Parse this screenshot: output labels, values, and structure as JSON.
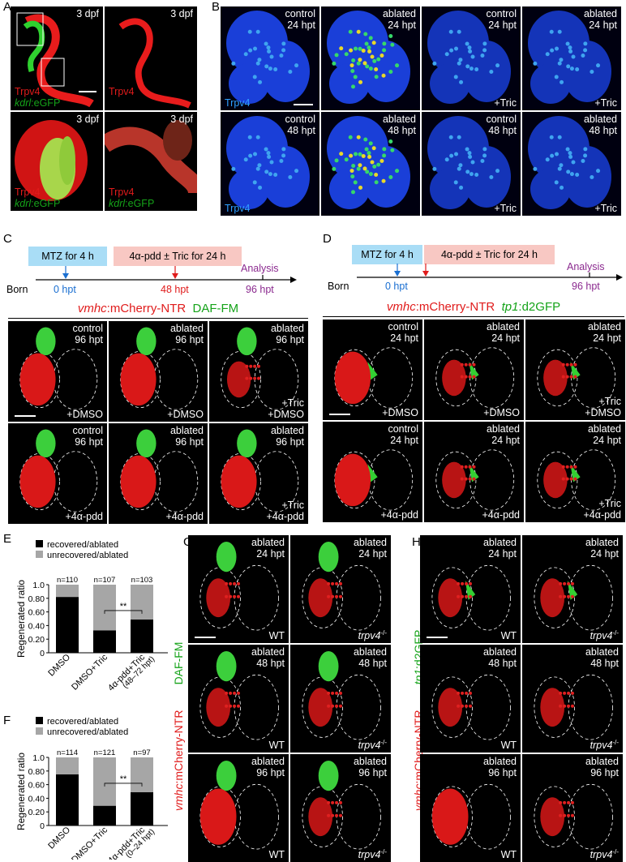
{
  "panels": {
    "A": {
      "label": "A",
      "tiles": [
        {
          "title": "3 dpf",
          "l1": "Trpv4",
          "l2": "kdrl",
          "l2b": ":eGFP"
        },
        {
          "title": "3 dpf",
          "l1": "Trpv4",
          "l2": "",
          "l2b": ""
        },
        {
          "title": "3 dpf",
          "l1": "Trpv4",
          "l2": "kdrl",
          "l2b": ":eGFP"
        },
        {
          "title": "3 dpf",
          "l1": "Trpv4",
          "l2": "kdrl",
          "l2b": ":eGFP"
        }
      ]
    },
    "B": {
      "label": "B",
      "tiles": [
        {
          "title": "control\n24 hpt",
          "br": "",
          "bl": "Trpv4"
        },
        {
          "title": "ablated\n24 hpt",
          "br": "",
          "bl": ""
        },
        {
          "title": "control\n24 hpt",
          "br": "+Tric",
          "bl": ""
        },
        {
          "title": "ablated\n24 hpt",
          "br": "+Tric",
          "bl": ""
        },
        {
          "title": "control\n48 hpt",
          "br": "",
          "bl": "Trpv4"
        },
        {
          "title": "ablated\n48 hpt",
          "br": "",
          "bl": ""
        },
        {
          "title": "control\n48 hpt",
          "br": "+Tric",
          "bl": ""
        },
        {
          "title": "ablated\n48 hpt",
          "br": "+Tric",
          "bl": ""
        }
      ]
    },
    "C": {
      "label": "C",
      "timeline": {
        "box1": "MTZ for 4 h",
        "box2": "4α-pdd ± Tric for 24 h",
        "analysis": "Analysis",
        "born": "Born",
        "t0": "0 hpt",
        "t1": "48 hpt",
        "t2": "96 hpt"
      },
      "header": {
        "g1": "vmhc",
        "g2": ":mCherry-NTR",
        "g3": "DAF-FM"
      },
      "tiles": [
        {
          "title": "control\n96 hpt",
          "br": "+DMSO"
        },
        {
          "title": "ablated\n96 hpt",
          "br": "+DMSO"
        },
        {
          "title": "ablated\n96 hpt",
          "br": "+Tric\n+DMSO"
        },
        {
          "title": "control\n96 hpt",
          "br": "+4α-pdd"
        },
        {
          "title": "ablated\n96 hpt",
          "br": "+4α-pdd"
        },
        {
          "title": "ablated\n96 hpt",
          "br": "+Tric\n+4α-pdd"
        }
      ]
    },
    "D": {
      "label": "D",
      "timeline": {
        "box1": "MTZ for 4 h",
        "box2": "4α-pdd ± Tric for 24 h",
        "analysis": "Analysis",
        "born": "Born",
        "t0": "0 hpt",
        "t2": "96 hpt"
      },
      "header": {
        "g1": "vmhc",
        "g2": ":mCherry-NTR",
        "g3": "tp1",
        "g4": ":d2GFP"
      },
      "tiles": [
        {
          "title": "control\n24 hpt",
          "br": "+DMSO"
        },
        {
          "title": "ablated\n24 hpt",
          "br": "+DMSO"
        },
        {
          "title": "ablated\n24 hpt",
          "br": "+Tric\n+DMSO"
        },
        {
          "title": "control\n24 hpt",
          "br": "+4α-pdd"
        },
        {
          "title": "ablated\n24 hpt",
          "br": "+4α-pdd"
        },
        {
          "title": "ablated\n24 hpt",
          "br": "+Tric\n+4α-pdd"
        }
      ]
    },
    "E": {
      "label": "E"
    },
    "F": {
      "label": "F"
    },
    "G": {
      "label": "G",
      "side": {
        "g1": "vmhc",
        "g2": ":mCherry-NTR",
        "g3": "DAF-FM"
      },
      "tiles": [
        {
          "title": "ablated\n24 hpt",
          "geno": "WT"
        },
        {
          "title": "ablated\n24 hpt",
          "geno": "trpv4"
        },
        {
          "title": "ablated\n48 hpt",
          "geno": "WT"
        },
        {
          "title": "ablated\n48 hpt",
          "geno": "trpv4"
        },
        {
          "title": "ablated\n96 hpt",
          "geno": "WT"
        },
        {
          "title": "ablated\n96 hpt",
          "geno": "trpv4"
        }
      ]
    },
    "H": {
      "label": "H",
      "side": {
        "g1": "vmhc",
        "g2": ":mCherry-NTR",
        "g3": "tp1",
        "g4": ":d2GFP"
      },
      "tiles": [
        {
          "title": "ablated\n24 hpt",
          "geno": "WT"
        },
        {
          "title": "ablated\n24 hpt",
          "geno": "trpv4"
        },
        {
          "title": "ablated\n48 hpt",
          "geno": "WT"
        },
        {
          "title": "ablated\n48 hpt",
          "geno": "trpv4"
        },
        {
          "title": "ablated\n96 hpt",
          "geno": "WT"
        },
        {
          "title": "ablated\n96 hpt",
          "geno": "trpv4"
        }
      ]
    },
    "mutant_sup": "-/-"
  },
  "chart_data": [
    {
      "panel": "E",
      "type": "bar",
      "stacked": true,
      "ylabel": "Regenerated ratio",
      "ylim": [
        0,
        1.0
      ],
      "yticks": [
        "0",
        "0.20",
        "0.40",
        "0.60",
        "0.80",
        "1.0"
      ],
      "categories": [
        "DMSO",
        "DMSO+Tric",
        "4α-pdd+Tric"
      ],
      "category_sub": [
        "",
        "",
        "(48–72 hpt)"
      ],
      "n_labels": [
        "n=110",
        "n=107",
        "n=103"
      ],
      "series": [
        {
          "name": "recovered/ablated",
          "color": "#000000",
          "values": [
            0.82,
            0.33,
            0.49
          ]
        },
        {
          "name": "unrecovered/ablated",
          "color": "#a6a6a6",
          "values": [
            0.18,
            0.67,
            0.51
          ]
        }
      ],
      "significance": "**"
    },
    {
      "panel": "F",
      "type": "bar",
      "stacked": true,
      "ylabel": "Regenerated ratio",
      "ylim": [
        0,
        1.0
      ],
      "yticks": [
        "0",
        "0.20",
        "0.40",
        "0.60",
        "0.80",
        "1.0"
      ],
      "categories": [
        "DMSO",
        "DMSO+Tric",
        "4α-pdd+Tric"
      ],
      "category_sub": [
        "",
        "",
        "(0–24 hpt)"
      ],
      "n_labels": [
        "n=114",
        "n=121",
        "n=97"
      ],
      "series": [
        {
          "name": "recovered/ablated",
          "color": "#000000",
          "values": [
            0.75,
            0.29,
            0.49
          ]
        },
        {
          "name": "unrecovered/ablated",
          "color": "#a6a6a6",
          "values": [
            0.25,
            0.71,
            0.51
          ]
        }
      ],
      "significance": "**"
    }
  ]
}
